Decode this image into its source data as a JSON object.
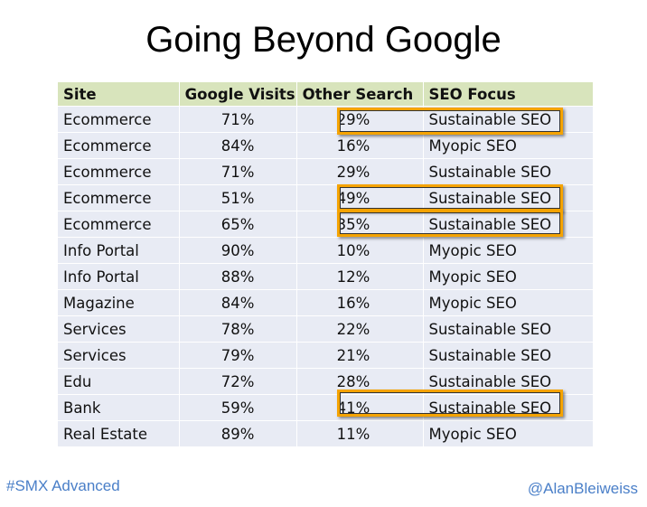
{
  "title": "Going Beyond Google",
  "table": {
    "headers": [
      "Site",
      "Google Visits",
      "Other Search",
      "SEO Focus"
    ],
    "rows": [
      {
        "site": "Ecommerce",
        "google": "71%",
        "other": "29%",
        "focus": "Sustainable SEO",
        "highlighted": true
      },
      {
        "site": "Ecommerce",
        "google": "84%",
        "other": "16%",
        "focus": "Myopic SEO",
        "highlighted": false
      },
      {
        "site": "Ecommerce",
        "google": "71%",
        "other": "29%",
        "focus": "Sustainable SEO",
        "highlighted": false
      },
      {
        "site": "Ecommerce",
        "google": "51%",
        "other": "49%",
        "focus": "Sustainable SEO",
        "highlighted": true
      },
      {
        "site": "Ecommerce",
        "google": "65%",
        "other": "35%",
        "focus": "Sustainable SEO",
        "highlighted": true
      },
      {
        "site": "Info Portal",
        "google": "90%",
        "other": "10%",
        "focus": "Myopic SEO",
        "highlighted": false
      },
      {
        "site": "Info Portal",
        "google": "88%",
        "other": "12%",
        "focus": "Myopic SEO",
        "highlighted": false
      },
      {
        "site": "Magazine",
        "google": "84%",
        "other": "16%",
        "focus": "Myopic SEO",
        "highlighted": false
      },
      {
        "site": "Services",
        "google": "78%",
        "other": "22%",
        "focus": "Sustainable SEO",
        "highlighted": false
      },
      {
        "site": "Services",
        "google": "79%",
        "other": "21%",
        "focus": "Sustainable SEO",
        "highlighted": false
      },
      {
        "site": "Edu",
        "google": "72%",
        "other": "28%",
        "focus": "Sustainable SEO",
        "highlighted": false
      },
      {
        "site": "Bank",
        "google": "59%",
        "other": "41%",
        "focus": "Sustainable SEO",
        "highlighted": true
      },
      {
        "site": "Real Estate",
        "google": "89%",
        "other": "11%",
        "focus": "Myopic SEO",
        "highlighted": false
      }
    ]
  },
  "colors": {
    "header_bg": "#d8e4bc",
    "row_bg": "#e8ebf4",
    "highlight": "#f5a300",
    "footer_text": "#4a7fc8"
  },
  "footer": {
    "hashtag": "#SMX Advanced",
    "handle": "@AlanBleiweiss"
  }
}
